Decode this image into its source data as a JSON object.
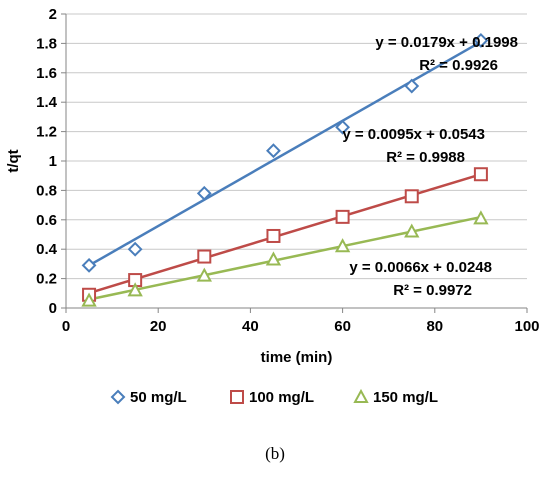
{
  "chart_data": {
    "type": "scatter",
    "xlabel": "time (min)",
    "ylabel": "t/qt",
    "xlim": [
      0,
      100
    ],
    "ylim": [
      0,
      2
    ],
    "x_ticks": [
      "0",
      "20",
      "40",
      "60",
      "80",
      "100"
    ],
    "y_ticks": [
      "0",
      "0.2",
      "0.4",
      "0.6",
      "0.8",
      "1",
      "1.2",
      "1.4",
      "1.6",
      "1.8",
      "2"
    ],
    "grid": "horizontal",
    "legend_position": "bottom",
    "series": [
      {
        "name": "50 mg/L",
        "marker": "diamond",
        "color": "#4a7ebb",
        "x": [
          5,
          15,
          30,
          45,
          60,
          75,
          90
        ],
        "y": [
          0.29,
          0.4,
          0.78,
          1.07,
          1.23,
          1.51,
          1.82
        ],
        "trendline": {
          "slope": 0.0179,
          "intercept": 0.1998
        },
        "equation": "y = 0.0179x + 0.1998",
        "r2": "R² = 0.9926"
      },
      {
        "name": "100 mg/L",
        "marker": "square",
        "color": "#be4b48",
        "x": [
          5,
          15,
          30,
          45,
          60,
          75,
          90
        ],
        "y": [
          0.09,
          0.19,
          0.35,
          0.49,
          0.62,
          0.76,
          0.91
        ],
        "trendline": {
          "slope": 0.0095,
          "intercept": 0.0543
        },
        "equation": "y = 0.0095x + 0.0543",
        "r2": "R² = 0.9988"
      },
      {
        "name": "150 mg/L",
        "marker": "triangle",
        "color": "#98b954",
        "x": [
          5,
          15,
          30,
          45,
          60,
          75,
          90
        ],
        "y": [
          0.05,
          0.12,
          0.22,
          0.33,
          0.42,
          0.52,
          0.61
        ],
        "trendline": {
          "slope": 0.0066,
          "intercept": 0.0248
        },
        "equation": "y = 0.0066x + 0.0248",
        "r2": "R² = 0.9972"
      }
    ]
  },
  "caption": "(b)"
}
